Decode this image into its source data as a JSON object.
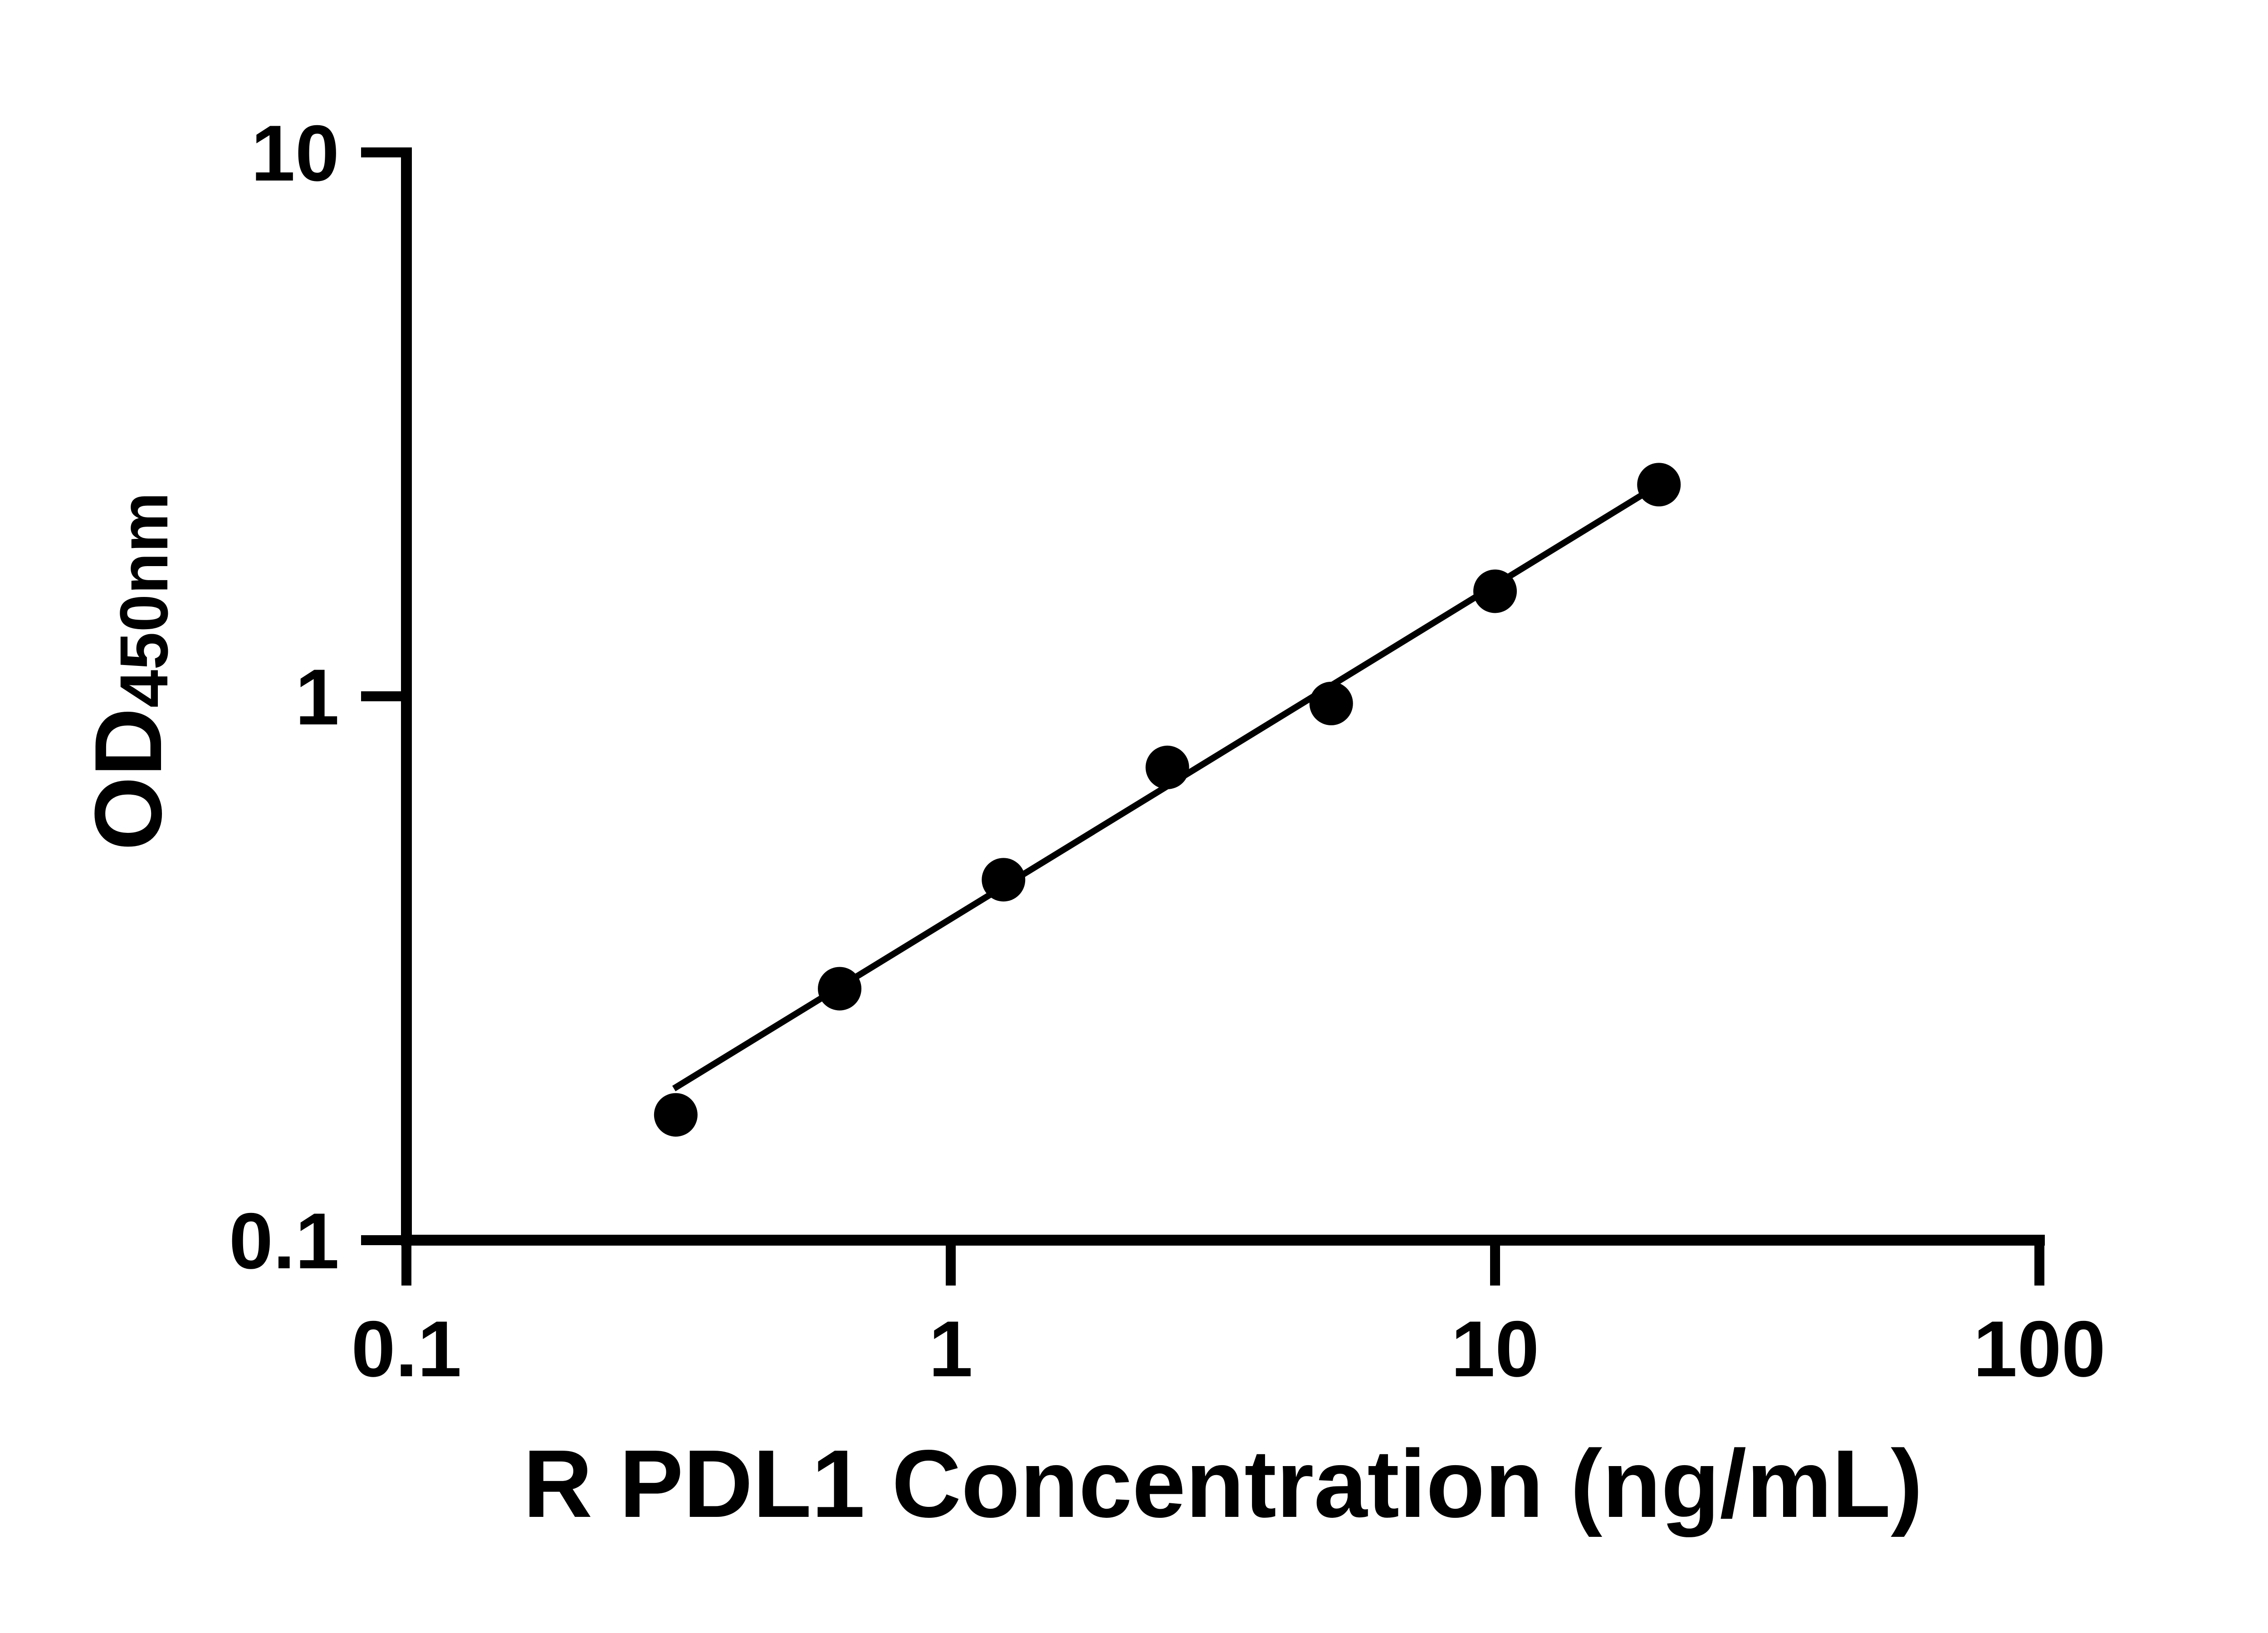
{
  "figure": {
    "background_color": "#ffffff",
    "foreground_color": "#000000"
  },
  "chart_data": {
    "type": "scatter",
    "title": "",
    "xlabel": "R PDL1 Concentration (ng/mL)",
    "ylabel_main": "OD",
    "ylabel_subscript": "450nm",
    "xscale": "log",
    "yscale": "log",
    "xlim": [
      0.1,
      100
    ],
    "ylim": [
      0.1,
      10
    ],
    "x_tick_values": [
      0.1,
      1,
      10,
      100
    ],
    "x_tick_labels": [
      "0.1",
      "1",
      "10",
      "100"
    ],
    "y_tick_values": [
      10,
      1,
      0.1
    ],
    "y_tick_labels": [
      "10",
      "1",
      "0.1"
    ],
    "grid": false,
    "legend": null,
    "axis_color": "#000000",
    "series": [
      {
        "marker": "circle",
        "color": "#000000",
        "points": [
          {
            "x": 0.3125,
            "y": 0.17
          },
          {
            "x": 0.625,
            "y": 0.29
          },
          {
            "x": 1.25,
            "y": 0.46
          },
          {
            "x": 2.5,
            "y": 0.74
          },
          {
            "x": 5,
            "y": 0.97
          },
          {
            "x": 10,
            "y": 1.56
          },
          {
            "x": 20,
            "y": 2.45
          }
        ]
      }
    ],
    "trend_line": {
      "color": "#000000",
      "x1": 0.31,
      "y1": 0.19,
      "x2": 20,
      "y2": 2.45
    }
  }
}
